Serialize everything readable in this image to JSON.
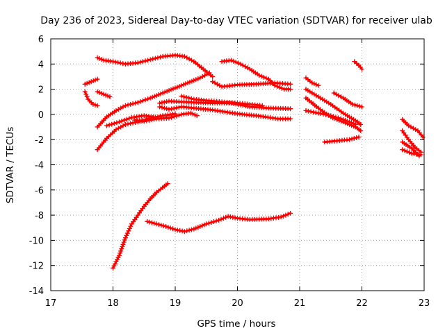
{
  "chart_data": {
    "type": "scatter",
    "title": "Day 236 of 2023, Sidereal Day-to-day VTEC variation (SDTVAR) for receiver ulab",
    "xlabel": "GPS time / hours",
    "ylabel": "SDTVAR / TECUs",
    "xlim": [
      17,
      23
    ],
    "ylim": [
      -14,
      6
    ],
    "xticks": [
      17,
      18,
      19,
      20,
      21,
      22,
      23
    ],
    "yticks": [
      6,
      4,
      2,
      0,
      -2,
      -4,
      -6,
      -8,
      -10,
      -12,
      -14
    ],
    "xtick_labels": [
      "17",
      "18",
      "19",
      "20",
      "21",
      "22",
      "23"
    ],
    "ytick_labels": [
      "6",
      "4",
      "2",
      "0",
      "-2",
      "-4",
      "-6",
      "-8",
      "-10",
      "-12",
      "-14"
    ],
    "grid": true,
    "color": "#ff0000",
    "marker": "+",
    "series": [
      {
        "name": "s1",
        "points": [
          [
            17.55,
            2.4
          ],
          [
            17.65,
            2.6
          ],
          [
            17.75,
            2.8
          ]
        ]
      },
      {
        "name": "s2",
        "points": [
          [
            17.55,
            1.8
          ],
          [
            17.6,
            1.2
          ],
          [
            17.68,
            0.8
          ],
          [
            17.75,
            0.7
          ]
        ]
      },
      {
        "name": "s3",
        "points": [
          [
            17.75,
            1.8
          ],
          [
            17.85,
            1.6
          ],
          [
            17.95,
            1.4
          ]
        ]
      },
      {
        "name": "s4",
        "points": [
          [
            17.75,
            4.5
          ],
          [
            17.85,
            4.3
          ],
          [
            18.0,
            4.2
          ],
          [
            18.2,
            4.0
          ],
          [
            18.4,
            4.1
          ],
          [
            18.6,
            4.35
          ],
          [
            18.8,
            4.6
          ],
          [
            19.0,
            4.7
          ],
          [
            19.15,
            4.6
          ],
          [
            19.3,
            4.2
          ],
          [
            19.45,
            3.6
          ],
          [
            19.6,
            3.0
          ]
        ]
      },
      {
        "name": "s5",
        "points": [
          [
            17.75,
            -1.0
          ],
          [
            17.9,
            -0.2
          ],
          [
            18.05,
            0.3
          ],
          [
            18.2,
            0.7
          ],
          [
            18.4,
            0.95
          ],
          [
            18.6,
            1.3
          ],
          [
            18.8,
            1.7
          ],
          [
            19.0,
            2.1
          ],
          [
            19.2,
            2.5
          ],
          [
            19.4,
            2.9
          ],
          [
            19.55,
            3.3
          ]
        ]
      },
      {
        "name": "s6",
        "points": [
          [
            17.75,
            -2.8
          ],
          [
            17.9,
            -1.9
          ],
          [
            18.05,
            -1.2
          ],
          [
            18.2,
            -0.8
          ],
          [
            18.4,
            -0.6
          ],
          [
            18.6,
            -0.3
          ],
          [
            18.8,
            -0.1
          ],
          [
            19.0,
            0.05
          ]
        ]
      },
      {
        "name": "s7",
        "points": [
          [
            17.9,
            -0.9
          ],
          [
            18.1,
            -0.6
          ],
          [
            18.3,
            -0.25
          ],
          [
            18.5,
            -0.1
          ],
          [
            18.65,
            -0.2
          ]
        ]
      },
      {
        "name": "s8",
        "points": [
          [
            18.35,
            -0.45
          ],
          [
            18.5,
            -0.55
          ],
          [
            18.7,
            -0.35
          ],
          [
            18.9,
            -0.3
          ],
          [
            19.1,
            0.0
          ],
          [
            19.25,
            0.1
          ],
          [
            19.35,
            -0.1
          ]
        ]
      },
      {
        "name": "s9",
        "points": [
          [
            18.75,
            0.9
          ],
          [
            18.9,
            1.05
          ],
          [
            19.1,
            1.0
          ],
          [
            19.3,
            0.95
          ],
          [
            19.6,
            0.9
          ],
          [
            19.9,
            0.9
          ],
          [
            20.2,
            0.6
          ],
          [
            20.5,
            0.5
          ],
          [
            20.85,
            0.45
          ]
        ]
      },
      {
        "name": "s10",
        "points": [
          [
            18.75,
            0.6
          ],
          [
            18.9,
            0.4
          ],
          [
            19.1,
            0.6
          ],
          [
            19.3,
            0.5
          ],
          [
            19.6,
            0.35
          ],
          [
            20.0,
            0.05
          ],
          [
            20.3,
            -0.1
          ],
          [
            20.45,
            -0.2
          ],
          [
            20.65,
            -0.35
          ],
          [
            20.85,
            -0.35
          ]
        ]
      },
      {
        "name": "s11",
        "points": [
          [
            19.1,
            1.45
          ],
          [
            19.3,
            1.2
          ],
          [
            19.5,
            1.1
          ],
          [
            19.75,
            1.0
          ],
          [
            20.0,
            0.9
          ],
          [
            20.2,
            0.8
          ],
          [
            20.4,
            0.7
          ]
        ]
      },
      {
        "name": "s12",
        "points": [
          [
            19.6,
            2.6
          ],
          [
            19.75,
            2.2
          ],
          [
            20.0,
            2.35
          ],
          [
            20.3,
            2.4
          ],
          [
            20.6,
            2.5
          ],
          [
            20.85,
            2.4
          ]
        ]
      },
      {
        "name": "s13",
        "points": [
          [
            19.75,
            4.2
          ],
          [
            19.9,
            4.3
          ],
          [
            20.05,
            4.0
          ],
          [
            20.2,
            3.6
          ],
          [
            20.35,
            3.1
          ],
          [
            20.5,
            2.8
          ],
          [
            20.6,
            2.3
          ],
          [
            20.75,
            2.0
          ],
          [
            20.85,
            2.0
          ]
        ]
      },
      {
        "name": "s14",
        "points": [
          [
            18.55,
            -8.5
          ],
          [
            18.7,
            -8.7
          ],
          [
            18.85,
            -8.9
          ],
          [
            19.0,
            -9.15
          ],
          [
            19.15,
            -9.3
          ],
          [
            19.3,
            -9.1
          ],
          [
            19.5,
            -8.7
          ],
          [
            19.7,
            -8.4
          ],
          [
            19.85,
            -8.1
          ],
          [
            20.0,
            -8.25
          ],
          [
            20.2,
            -8.35
          ],
          [
            20.5,
            -8.3
          ],
          [
            20.7,
            -8.15
          ],
          [
            20.85,
            -7.85
          ]
        ]
      },
      {
        "name": "s15",
        "points": [
          [
            18.0,
            -12.2
          ],
          [
            18.1,
            -11.2
          ],
          [
            18.2,
            -9.8
          ],
          [
            18.3,
            -8.7
          ],
          [
            18.4,
            -8.0
          ],
          [
            18.5,
            -7.3
          ],
          [
            18.6,
            -6.7
          ],
          [
            18.7,
            -6.2
          ],
          [
            18.8,
            -5.8
          ],
          [
            18.88,
            -5.5
          ]
        ]
      },
      {
        "name": "s16",
        "points": [
          [
            21.1,
            2.9
          ],
          [
            21.2,
            2.5
          ],
          [
            21.3,
            2.3
          ]
        ]
      },
      {
        "name": "s17",
        "points": [
          [
            21.1,
            2.0
          ],
          [
            21.3,
            1.4
          ],
          [
            21.5,
            0.8
          ],
          [
            21.7,
            0.1
          ],
          [
            21.9,
            -0.5
          ],
          [
            21.98,
            -0.8
          ]
        ]
      },
      {
        "name": "s18",
        "points": [
          [
            21.1,
            0.3
          ],
          [
            21.3,
            0.1
          ],
          [
            21.5,
            -0.1
          ],
          [
            21.7,
            -0.4
          ],
          [
            21.9,
            -0.8
          ]
        ]
      },
      {
        "name": "s19",
        "points": [
          [
            21.1,
            1.3
          ],
          [
            21.3,
            0.5
          ],
          [
            21.5,
            -0.2
          ],
          [
            21.7,
            -0.6
          ],
          [
            21.9,
            -1.0
          ],
          [
            21.98,
            -1.3
          ]
        ]
      },
      {
        "name": "s20",
        "points": [
          [
            21.55,
            1.7
          ],
          [
            21.7,
            1.3
          ],
          [
            21.85,
            0.8
          ],
          [
            22.0,
            0.6
          ]
        ]
      },
      {
        "name": "s21",
        "points": [
          [
            21.4,
            -2.2
          ],
          [
            21.6,
            -2.1
          ],
          [
            21.8,
            -2.0
          ],
          [
            21.95,
            -1.8
          ]
        ]
      },
      {
        "name": "s22",
        "points": [
          [
            21.88,
            4.2
          ],
          [
            21.95,
            3.9
          ],
          [
            22.0,
            3.6
          ]
        ]
      },
      {
        "name": "s23",
        "points": [
          [
            22.65,
            -0.4
          ],
          [
            22.75,
            -0.9
          ],
          [
            22.9,
            -1.3
          ],
          [
            22.98,
            -1.8
          ]
        ]
      },
      {
        "name": "s24",
        "points": [
          [
            22.65,
            -1.3
          ],
          [
            22.75,
            -2.0
          ],
          [
            22.85,
            -2.6
          ],
          [
            22.95,
            -3.0
          ]
        ]
      },
      {
        "name": "s25",
        "points": [
          [
            22.65,
            -2.2
          ],
          [
            22.8,
            -2.7
          ],
          [
            22.92,
            -3.3
          ]
        ]
      },
      {
        "name": "s26",
        "points": [
          [
            22.65,
            -2.8
          ],
          [
            22.8,
            -3.1
          ],
          [
            22.95,
            -3.2
          ]
        ]
      }
    ]
  }
}
